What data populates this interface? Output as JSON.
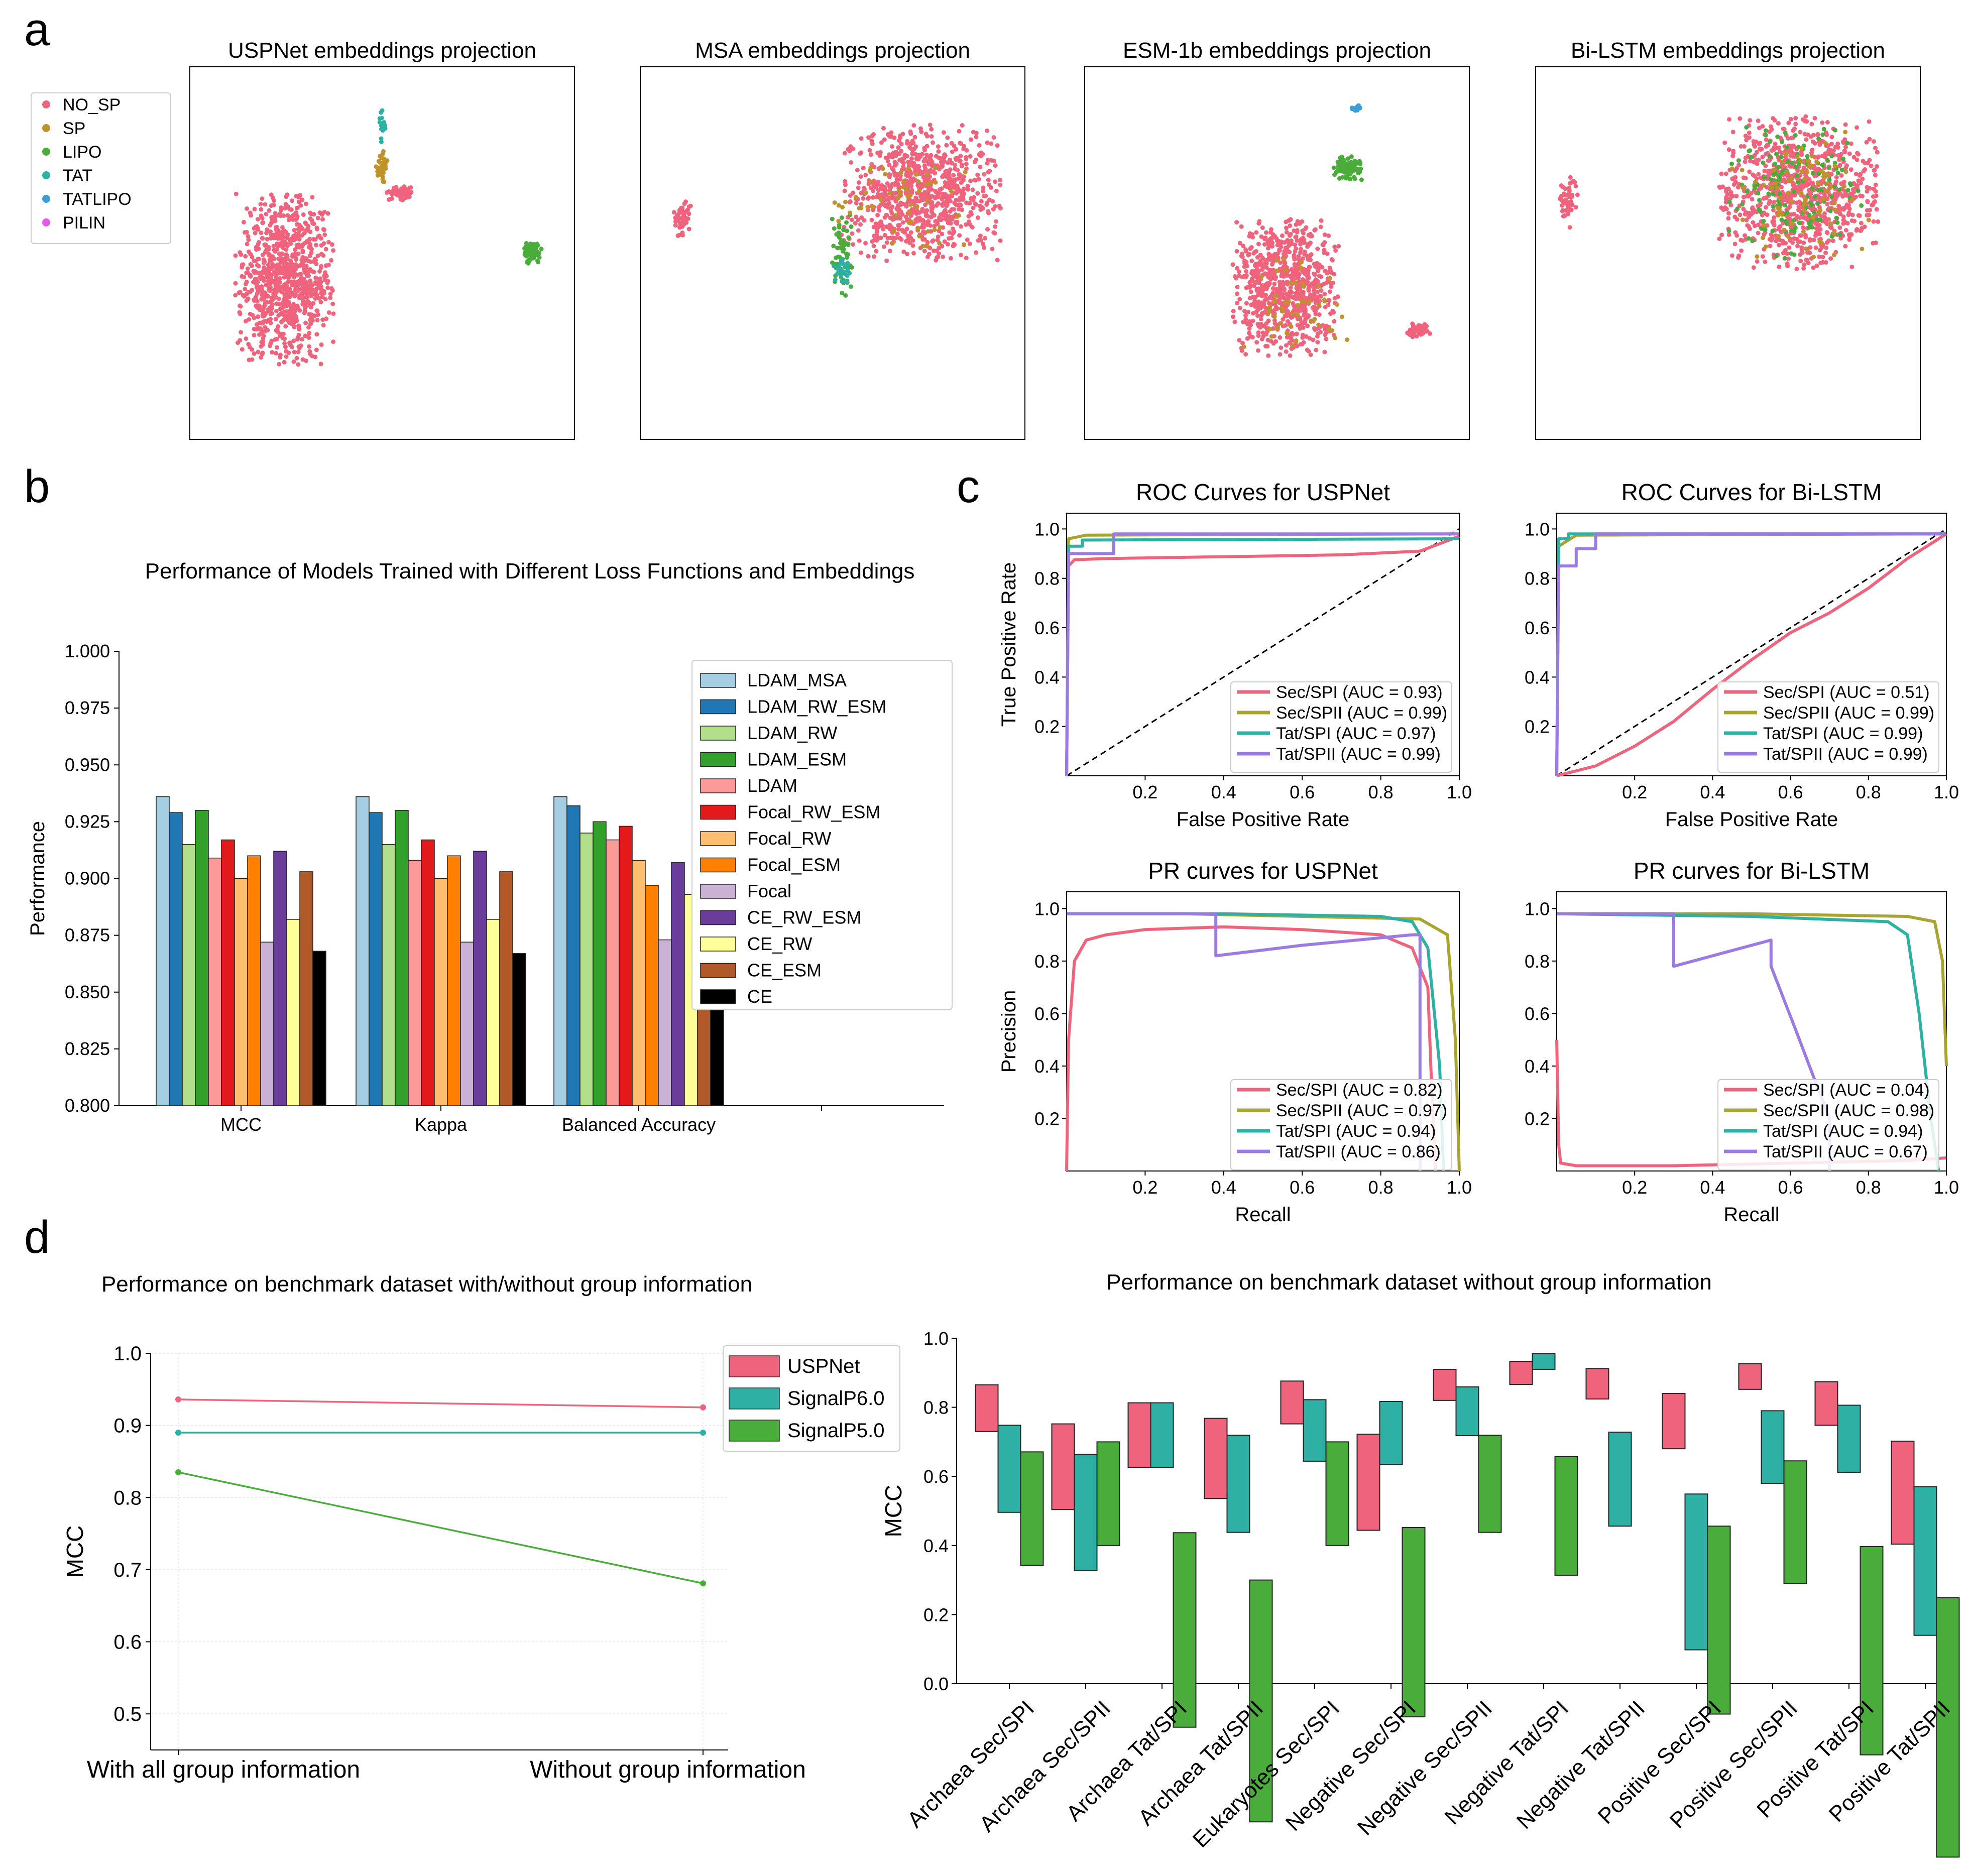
{
  "panel_labels": [
    "a",
    "b",
    "c",
    "d"
  ],
  "chart_data": [
    {
      "id": "a1",
      "type": "scatter",
      "title": "USPNet embeddings projection",
      "legend": {
        "entries": [
          "NO_SP",
          "SP",
          "LIPO",
          "TAT",
          "TATLIPO",
          "PILIN"
        ],
        "colors": [
          "#f0637c",
          "#c0922a",
          "#4aac3a",
          "#2fb0a4",
          "#3a9fd8",
          "#e45ae8"
        ]
      },
      "clusters": [
        {
          "class": "NO_SP",
          "cx": -0.55,
          "cy": -0.15,
          "rx": 0.28,
          "ry": 0.5,
          "n": 900
        },
        {
          "class": "NO_SP",
          "cx": 0.1,
          "cy": 0.35,
          "rx": 0.08,
          "ry": 0.04,
          "n": 60
        },
        {
          "class": "SP",
          "cx": 0.0,
          "cy": 0.5,
          "rx": 0.04,
          "ry": 0.1,
          "n": 40
        },
        {
          "class": "TAT",
          "cx": 0.0,
          "cy": 0.75,
          "rx": 0.02,
          "ry": 0.12,
          "n": 20
        },
        {
          "class": "LIPO",
          "cx": 0.85,
          "cy": 0.0,
          "rx": 0.05,
          "ry": 0.06,
          "n": 60
        }
      ]
    },
    {
      "id": "a2",
      "type": "scatter",
      "title": "MSA embeddings projection",
      "clusters": [
        {
          "class": "NO_SP",
          "cx": 0.5,
          "cy": 0.35,
          "rx": 0.45,
          "ry": 0.4,
          "n": 900
        },
        {
          "class": "NO_SP",
          "cx": -0.85,
          "cy": 0.2,
          "rx": 0.05,
          "ry": 0.1,
          "n": 50
        },
        {
          "class": "LIPO",
          "cx": 0.05,
          "cy": 0.0,
          "rx": 0.06,
          "ry": 0.25,
          "n": 60
        },
        {
          "class": "TAT",
          "cx": 0.05,
          "cy": -0.1,
          "rx": 0.05,
          "ry": 0.08,
          "n": 30
        },
        {
          "class": "SP",
          "cx": 0.4,
          "cy": 0.3,
          "rx": 0.4,
          "ry": 0.3,
          "n": 60
        }
      ]
    },
    {
      "id": "a3",
      "type": "scatter",
      "title": "ESM-1b embeddings projection",
      "clusters": [
        {
          "class": "NO_SP",
          "cx": 0.05,
          "cy": -0.2,
          "rx": 0.3,
          "ry": 0.4,
          "n": 800
        },
        {
          "class": "NO_SP",
          "cx": 0.8,
          "cy": -0.45,
          "rx": 0.07,
          "ry": 0.04,
          "n": 50
        },
        {
          "class": "LIPO",
          "cx": 0.4,
          "cy": 0.5,
          "rx": 0.08,
          "ry": 0.08,
          "n": 80
        },
        {
          "class": "SP",
          "cx": 0.1,
          "cy": -0.3,
          "rx": 0.3,
          "ry": 0.3,
          "n": 50
        },
        {
          "class": "TATLIPO",
          "cx": 0.45,
          "cy": 0.85,
          "rx": 0.03,
          "ry": 0.02,
          "n": 15
        }
      ]
    },
    {
      "id": "a4",
      "type": "scatter",
      "title": "Bi-LSTM embeddings projection",
      "clusters": [
        {
          "class": "NO_SP",
          "cx": 0.4,
          "cy": 0.35,
          "rx": 0.45,
          "ry": 0.45,
          "n": 900
        },
        {
          "class": "NO_SP",
          "cx": -0.9,
          "cy": 0.3,
          "rx": 0.05,
          "ry": 0.15,
          "n": 50
        },
        {
          "class": "LIPO",
          "cx": 0.4,
          "cy": 0.35,
          "rx": 0.4,
          "ry": 0.4,
          "n": 150
        },
        {
          "class": "SP",
          "cx": 0.4,
          "cy": 0.35,
          "rx": 0.4,
          "ry": 0.4,
          "n": 80
        }
      ]
    },
    {
      "id": "b",
      "type": "bar",
      "title": "Performance of Models Trained with Different Loss Functions and Embeddings",
      "ylabel": "Performance",
      "ylim": [
        0.8,
        1.0
      ],
      "yticks": [
        "0.800",
        "0.825",
        "0.850",
        "0.875",
        "0.900",
        "0.925",
        "0.950",
        "0.975",
        "1.000"
      ],
      "categories": [
        "MCC",
        "Kappa",
        "Balanced Accuracy"
      ],
      "series": [
        {
          "name": "LDAM_MSA",
          "color": "#a6cee3",
          "values": [
            0.936,
            0.936,
            0.936
          ]
        },
        {
          "name": "LDAM_RW_ESM",
          "color": "#1f78b4",
          "values": [
            0.929,
            0.929,
            0.932
          ]
        },
        {
          "name": "LDAM_RW",
          "color": "#b2df8a",
          "values": [
            0.915,
            0.915,
            0.92
          ]
        },
        {
          "name": "LDAM_ESM",
          "color": "#33a02c",
          "values": [
            0.93,
            0.93,
            0.925
          ]
        },
        {
          "name": "LDAM",
          "color": "#fb9a99",
          "values": [
            0.909,
            0.908,
            0.917
          ]
        },
        {
          "name": "Focal_RW_ESM",
          "color": "#e31a1c",
          "values": [
            0.917,
            0.917,
            0.923
          ]
        },
        {
          "name": "Focal_RW",
          "color": "#fdbf6f",
          "values": [
            0.9,
            0.9,
            0.908
          ]
        },
        {
          "name": "Focal_ESM",
          "color": "#ff7f00",
          "values": [
            0.91,
            0.91,
            0.897
          ]
        },
        {
          "name": "Focal",
          "color": "#cab2d6",
          "values": [
            0.872,
            0.872,
            0.873
          ]
        },
        {
          "name": "CE_RW_ESM",
          "color": "#6a3d9a",
          "values": [
            0.912,
            0.912,
            0.907
          ]
        },
        {
          "name": "CE_RW",
          "color": "#ffff99",
          "values": [
            0.882,
            0.882,
            0.893
          ]
        },
        {
          "name": "CE_ESM",
          "color": "#b15928",
          "values": [
            0.903,
            0.903,
            0.896
          ]
        },
        {
          "name": "CE",
          "color": "#000000",
          "values": [
            0.868,
            0.867,
            0.854
          ]
        }
      ]
    },
    {
      "id": "c1",
      "type": "line",
      "title": "ROC Curves for USPNet",
      "xlabel": "False Positive Rate",
      "ylabel": "True Positive Rate",
      "xlim": [
        0,
        1
      ],
      "ylim": [
        0,
        1
      ],
      "xticks": [
        "0.2",
        "0.4",
        "0.6",
        "0.8",
        "1.0"
      ],
      "yticks": [
        "0.2",
        "0.4",
        "0.6",
        "0.8",
        "1.0"
      ],
      "series": [
        {
          "name": "Sec/SPI (AUC = 0.93)",
          "color": "#f0637c",
          "x": [
            0,
            0.005,
            0.02,
            0.1,
            0.3,
            0.5,
            0.7,
            0.9,
            1.0
          ],
          "y": [
            0,
            0.85,
            0.875,
            0.88,
            0.885,
            0.89,
            0.895,
            0.91,
            0.97
          ]
        },
        {
          "name": "Sec/SPII (AUC = 0.99)",
          "color": "#a9a42f",
          "x": [
            0,
            0.005,
            0.05,
            1.0
          ],
          "y": [
            0,
            0.96,
            0.975,
            0.98
          ]
        },
        {
          "name": "Tat/SPI (AUC = 0.97)",
          "color": "#2fb0a4",
          "x": [
            0,
            0.005,
            0.04,
            0.04,
            1.0
          ],
          "y": [
            0,
            0.93,
            0.93,
            0.955,
            0.96
          ]
        },
        {
          "name": "Tat/SPII (AUC = 0.99)",
          "color": "#9b7be3",
          "x": [
            0,
            0.005,
            0.12,
            0.12,
            1.0
          ],
          "y": [
            0,
            0.9,
            0.9,
            0.98,
            0.98
          ]
        }
      ]
    },
    {
      "id": "c2",
      "type": "line",
      "title": "ROC Curves for Bi-LSTM",
      "xlabel": "False Positive Rate",
      "xlim": [
        0,
        1
      ],
      "ylim": [
        0,
        1
      ],
      "xticks": [
        "0.2",
        "0.4",
        "0.6",
        "0.8",
        "1.0"
      ],
      "yticks": [
        "0.2",
        "0.4",
        "0.6",
        "0.8",
        "1.0"
      ],
      "series": [
        {
          "name": "Sec/SPI (AUC = 0.51)",
          "color": "#f0637c",
          "x": [
            0,
            0.1,
            0.2,
            0.3,
            0.4,
            0.5,
            0.6,
            0.7,
            0.8,
            0.9,
            1.0
          ],
          "y": [
            0,
            0.04,
            0.12,
            0.22,
            0.35,
            0.47,
            0.58,
            0.66,
            0.76,
            0.88,
            0.98
          ]
        },
        {
          "name": "Sec/SPII (AUC = 0.99)",
          "color": "#a9a42f",
          "x": [
            0,
            0.005,
            0.05,
            1.0
          ],
          "y": [
            0,
            0.93,
            0.975,
            0.98
          ]
        },
        {
          "name": "Tat/SPI (AUC = 0.99)",
          "color": "#2fb0a4",
          "x": [
            0,
            0.005,
            0.03,
            0.03,
            1.0
          ],
          "y": [
            0,
            0.96,
            0.96,
            0.98,
            0.98
          ]
        },
        {
          "name": "Tat/SPII (AUC = 0.99)",
          "color": "#9b7be3",
          "x": [
            0,
            0.005,
            0.05,
            0.05,
            0.1,
            0.1,
            1.0
          ],
          "y": [
            0,
            0.85,
            0.85,
            0.92,
            0.92,
            0.98,
            0.98
          ]
        }
      ]
    },
    {
      "id": "c3",
      "type": "line",
      "title": "PR curves for USPNet",
      "xlabel": "Recall",
      "ylabel": "Precision",
      "xlim": [
        0,
        1
      ],
      "ylim": [
        0,
        1
      ],
      "xticks": [
        "0.2",
        "0.4",
        "0.6",
        "0.8",
        "1.0"
      ],
      "yticks": [
        "0.2",
        "0.4",
        "0.6",
        "0.8",
        "1.0"
      ],
      "series": [
        {
          "name": "Sec/SPI (AUC = 0.82)",
          "color": "#f0637c",
          "x": [
            0,
            0.005,
            0.02,
            0.05,
            0.1,
            0.2,
            0.4,
            0.6,
            0.8,
            0.88,
            0.92,
            0.93,
            0.94
          ],
          "y": [
            0.0,
            0.5,
            0.8,
            0.88,
            0.9,
            0.92,
            0.93,
            0.92,
            0.9,
            0.85,
            0.7,
            0.3,
            0.0
          ]
        },
        {
          "name": "Sec/SPII (AUC = 0.97)",
          "color": "#a9a42f",
          "x": [
            0,
            0.3,
            0.6,
            0.9,
            0.97,
            0.99,
            1.0
          ],
          "y": [
            0.98,
            0.98,
            0.97,
            0.96,
            0.9,
            0.5,
            0.0
          ]
        },
        {
          "name": "Tat/SPI (AUC = 0.94)",
          "color": "#2fb0a4",
          "x": [
            0,
            0.4,
            0.8,
            0.88,
            0.92,
            0.95,
            0.96
          ],
          "y": [
            0.98,
            0.98,
            0.97,
            0.95,
            0.85,
            0.4,
            0.0
          ]
        },
        {
          "name": "Tat/SPII (AUC = 0.86)",
          "color": "#9b7be3",
          "x": [
            0,
            0.38,
            0.38,
            0.6,
            0.88,
            0.9,
            0.9
          ],
          "y": [
            0.98,
            0.98,
            0.82,
            0.86,
            0.9,
            0.9,
            0.0
          ]
        }
      ]
    },
    {
      "id": "c4",
      "type": "line",
      "title": "PR curves for Bi-LSTM",
      "xlabel": "Recall",
      "xlim": [
        0,
        1
      ],
      "ylim": [
        0,
        1
      ],
      "xticks": [
        "0.2",
        "0.4",
        "0.6",
        "0.8",
        "1.0"
      ],
      "yticks": [
        "0.2",
        "0.4",
        "0.6",
        "0.8",
        "1.0"
      ],
      "series": [
        {
          "name": "Sec/SPI (AUC = 0.04)",
          "color": "#f0637c",
          "x": [
            0,
            0.005,
            0.01,
            0.05,
            0.3,
            0.6,
            0.9,
            1.0
          ],
          "y": [
            0.5,
            0.1,
            0.03,
            0.02,
            0.02,
            0.03,
            0.04,
            0.05
          ]
        },
        {
          "name": "Sec/SPII (AUC = 0.98)",
          "color": "#a9a42f",
          "x": [
            0,
            0.5,
            0.9,
            0.97,
            0.99,
            1.0
          ],
          "y": [
            0.98,
            0.98,
            0.97,
            0.95,
            0.8,
            0.4
          ]
        },
        {
          "name": "Tat/SPI (AUC = 0.94)",
          "color": "#2fb0a4",
          "x": [
            0,
            0.5,
            0.85,
            0.9,
            0.93,
            0.96,
            0.98
          ],
          "y": [
            0.98,
            0.97,
            0.95,
            0.9,
            0.6,
            0.2,
            0.0
          ]
        },
        {
          "name": "Tat/SPII (AUC = 0.67)",
          "color": "#9b7be3",
          "x": [
            0,
            0.3,
            0.3,
            0.55,
            0.55,
            0.61,
            0.61,
            0.7,
            0.7
          ],
          "y": [
            0.98,
            0.98,
            0.78,
            0.88,
            0.78,
            0.55,
            0.55,
            0.2,
            0.0
          ]
        }
      ]
    },
    {
      "id": "d1",
      "type": "line",
      "title": "Performance on benchmark dataset with/without group information",
      "ylabel": "MCC",
      "ylim": [
        0.45,
        1.0
      ],
      "yticks": [
        "0.5",
        "0.6",
        "0.7",
        "0.8",
        "0.9",
        "1.0"
      ],
      "categories": [
        "With all group information",
        "Without group information"
      ],
      "series": [
        {
          "name": "USPNet",
          "color": "#f0637c",
          "values": [
            0.936,
            0.925
          ]
        },
        {
          "name": "SignalP6.0",
          "color": "#2fb0a4",
          "values": [
            0.89,
            0.89
          ]
        },
        {
          "name": "SignalP5.0",
          "color": "#4aac3a",
          "values": [
            0.835,
            0.681
          ]
        }
      ]
    },
    {
      "id": "d2",
      "type": "bar",
      "title": "Performance on benchmark dataset without group information",
      "ylabel": "MCC",
      "ylim": [
        0.0,
        1.0
      ],
      "yticks": [
        "0.0",
        "0.2",
        "0.4",
        "0.6",
        "0.8",
        "1.0"
      ],
      "categories": [
        "Archaea Sec/SPI",
        "Archaea Sec/SPII",
        "Archaea Tat/SPI",
        "Archaea Tat/SPII",
        "Eukaryotes Sec/SPI",
        "Negative Sec/SPI",
        "Negative Sec/SPII",
        "Negative Tat/SPI",
        "Negative Tat/SPII",
        "Positive Sec/SPI",
        "Positive Sec/SPII",
        "Positive Tat/SPI",
        "Positive Tat/SPII"
      ],
      "series": [
        {
          "name": "USPNet",
          "color": "#f0637c",
          "values": [
            0.865,
            0.752,
            0.813,
            0.768,
            0.876,
            0.722,
            0.91,
            0.933,
            0.912,
            0.84,
            0.926,
            0.874,
            0.702
          ]
        },
        {
          "name": "SignalP6.0",
          "color": "#2fb0a4",
          "values": [
            0.748,
            0.664,
            0.813,
            0.719,
            0.822,
            0.817,
            0.859,
            0.955,
            0.728,
            0.549,
            0.79,
            0.806,
            0.57
          ]
        },
        {
          "name": "SignalP5.0",
          "color": "#4aac3a",
          "values": [
            0.671,
            0.7,
            0.437,
            0.3,
            0.7,
            0.452,
            0.719,
            0.657,
            null,
            0.456,
            0.645,
            0.397,
            0.249
          ]
        }
      ]
    }
  ]
}
